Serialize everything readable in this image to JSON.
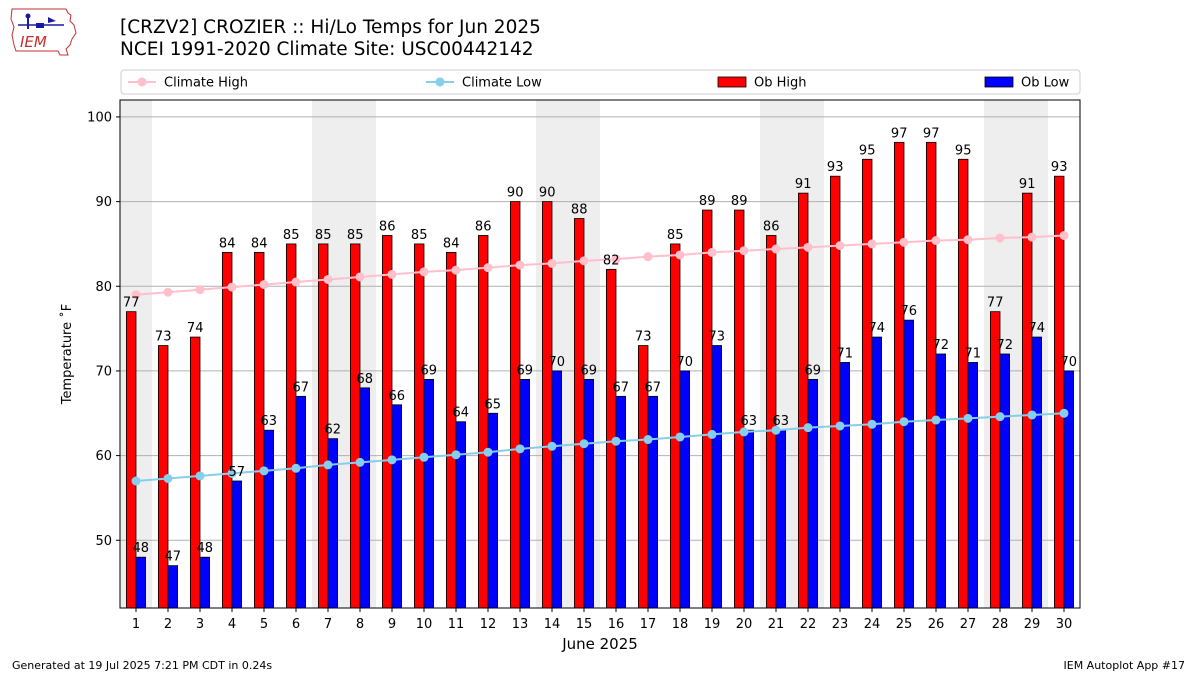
{
  "header": {
    "title_line1": "[CRZV2] CROZIER :: Hi/Lo Temps for Jun 2025",
    "title_line2": "NCEI 1991-2020 Climate Site: USC00442142",
    "logo_text": "IEM"
  },
  "footer": {
    "generated": "Generated at 19 Jul 2025 7:21 PM CDT in 0.24s",
    "app": "IEM Autoplot App #17"
  },
  "colors": {
    "ob_high": "#ff0000",
    "ob_low": "#0000ff",
    "climate_high": "#ffc0cb",
    "climate_low": "#87ceeb",
    "weekend_shade": "#eeeeee",
    "grid": "#b0b0b0"
  },
  "chart_data": {
    "type": "bar",
    "xlabel": "June 2025",
    "ylabel": "Temperature ˚F",
    "ylim": [
      42,
      102
    ],
    "yticks": [
      50,
      60,
      70,
      80,
      90,
      100
    ],
    "grid": "horizontal",
    "legend_placement": "top",
    "categories": [
      "1",
      "2",
      "3",
      "4",
      "5",
      "6",
      "7",
      "8",
      "9",
      "10",
      "11",
      "12",
      "13",
      "14",
      "15",
      "16",
      "17",
      "18",
      "19",
      "20",
      "21",
      "22",
      "23",
      "24",
      "25",
      "26",
      "27",
      "28",
      "29",
      "30"
    ],
    "weekend_days": [
      1,
      7,
      8,
      14,
      15,
      21,
      22,
      28,
      29
    ],
    "series": [
      {
        "name": "Climate High",
        "kind": "line",
        "values": [
          79.0,
          79.3,
          79.6,
          79.9,
          80.2,
          80.5,
          80.8,
          81.1,
          81.4,
          81.7,
          81.9,
          82.2,
          82.5,
          82.7,
          83.0,
          83.2,
          83.5,
          83.7,
          84.0,
          84.2,
          84.4,
          84.6,
          84.8,
          85.0,
          85.2,
          85.4,
          85.5,
          85.7,
          85.8,
          86.0
        ]
      },
      {
        "name": "Climate Low",
        "kind": "line",
        "values": [
          57.0,
          57.3,
          57.6,
          57.9,
          58.2,
          58.5,
          58.9,
          59.2,
          59.5,
          59.8,
          60.1,
          60.4,
          60.8,
          61.1,
          61.4,
          61.7,
          61.9,
          62.2,
          62.5,
          62.8,
          63.0,
          63.3,
          63.5,
          63.7,
          64.0,
          64.2,
          64.4,
          64.6,
          64.8,
          65.0
        ]
      },
      {
        "name": "Ob High",
        "kind": "bar",
        "values": [
          77,
          73,
          74,
          84,
          84,
          85,
          85,
          85,
          86,
          85,
          84,
          86,
          90,
          90,
          88,
          82,
          73,
          85,
          89,
          89,
          86,
          91,
          93,
          95,
          97,
          97,
          95,
          77,
          91,
          93
        ]
      },
      {
        "name": "Ob Low",
        "kind": "bar",
        "values": [
          48,
          47,
          48,
          57,
          63,
          67,
          62,
          68,
          66,
          69,
          64,
          65,
          69,
          70,
          69,
          67,
          67,
          70,
          73,
          63,
          63,
          69,
          71,
          74,
          76,
          72,
          71,
          72,
          74,
          70
        ]
      }
    ]
  }
}
